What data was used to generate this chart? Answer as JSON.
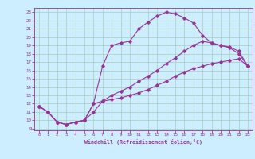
{
  "xlabel": "Windchill (Refroidissement éolien,°C)",
  "bg_color": "#cceeff",
  "line_color": "#993399",
  "grid_color": "#aaccbb",
  "xlim": [
    -0.5,
    23.5
  ],
  "ylim": [
    8.8,
    23.5
  ],
  "xticks": [
    0,
    1,
    2,
    3,
    4,
    5,
    6,
    7,
    8,
    9,
    10,
    11,
    12,
    13,
    14,
    15,
    16,
    17,
    18,
    19,
    20,
    21,
    22,
    23
  ],
  "yticks": [
    9,
    10,
    11,
    12,
    13,
    14,
    15,
    16,
    17,
    18,
    19,
    20,
    21,
    22,
    23
  ],
  "line1_x": [
    0,
    1,
    2,
    3,
    4,
    5,
    6,
    7,
    8,
    9,
    10,
    11,
    12,
    13,
    14,
    15,
    16,
    17,
    18,
    19,
    20,
    21,
    22,
    23
  ],
  "line1_y": [
    11.7,
    11.0,
    9.8,
    9.5,
    9.8,
    10.0,
    12.0,
    12.3,
    12.5,
    12.7,
    13.0,
    13.3,
    13.7,
    14.2,
    14.7,
    15.3,
    15.8,
    16.2,
    16.5,
    16.8,
    17.0,
    17.2,
    17.4,
    16.5
  ],
  "line2_x": [
    0,
    1,
    2,
    3,
    4,
    5,
    6,
    7,
    8,
    9,
    10,
    11,
    12,
    13,
    14,
    15,
    16,
    17,
    18,
    19,
    20,
    21,
    22,
    23
  ],
  "line2_y": [
    11.7,
    11.0,
    9.8,
    9.5,
    9.8,
    10.0,
    11.0,
    12.3,
    13.0,
    13.5,
    14.0,
    14.7,
    15.3,
    16.0,
    16.8,
    17.5,
    18.3,
    19.0,
    19.5,
    19.3,
    19.0,
    18.7,
    18.0,
    16.5
  ],
  "line3_x": [
    0,
    1,
    2,
    3,
    4,
    5,
    6,
    7,
    8,
    9,
    10,
    11,
    12,
    13,
    14,
    15,
    16,
    17,
    18,
    19,
    20,
    21,
    22,
    23
  ],
  "line3_y": [
    11.7,
    11.0,
    9.8,
    9.5,
    9.8,
    10.0,
    12.0,
    16.5,
    19.0,
    19.3,
    19.5,
    21.0,
    21.8,
    22.5,
    23.0,
    22.8,
    22.3,
    21.7,
    20.2,
    19.3,
    19.0,
    18.8,
    18.3,
    16.5
  ]
}
